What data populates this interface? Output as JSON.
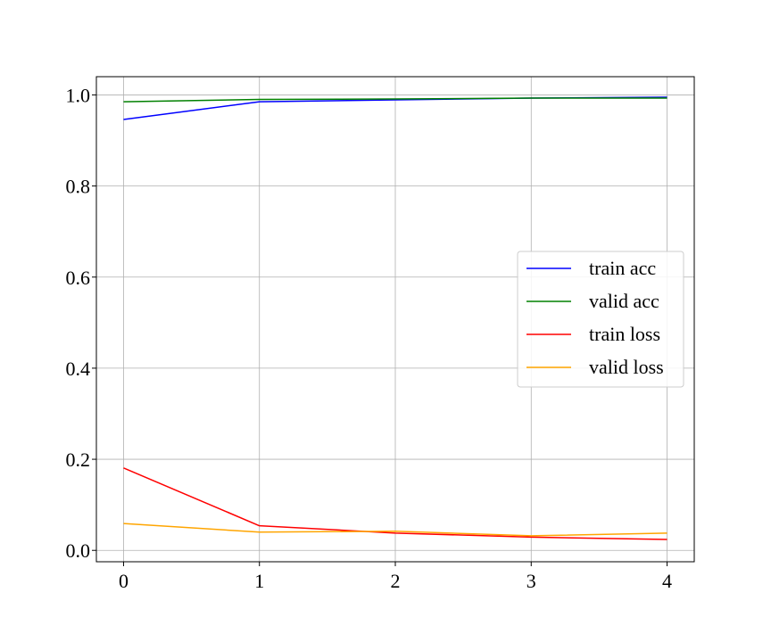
{
  "chart_data": {
    "type": "line",
    "x": [
      0,
      1,
      2,
      3,
      4
    ],
    "xticks": [
      "0",
      "1",
      "2",
      "3",
      "4"
    ],
    "yticks": [
      "0.0",
      "0.2",
      "0.4",
      "0.6",
      "0.8",
      "1.0"
    ],
    "xlim": [
      -0.2,
      4.2
    ],
    "ylim": [
      -0.025,
      1.04
    ],
    "grid": true,
    "legend_position": "center-right",
    "series": [
      {
        "name": "train acc",
        "color": "#0000ff",
        "values": [
          0.946,
          0.985,
          0.989,
          0.993,
          0.995
        ]
      },
      {
        "name": "valid acc",
        "color": "#008000",
        "values": [
          0.985,
          0.99,
          0.991,
          0.993,
          0.993
        ]
      },
      {
        "name": "train loss",
        "color": "#ff0000",
        "values": [
          0.181,
          0.054,
          0.038,
          0.029,
          0.024
        ]
      },
      {
        "name": "valid loss",
        "color": "#ffa500",
        "values": [
          0.059,
          0.04,
          0.042,
          0.032,
          0.038
        ]
      }
    ]
  }
}
